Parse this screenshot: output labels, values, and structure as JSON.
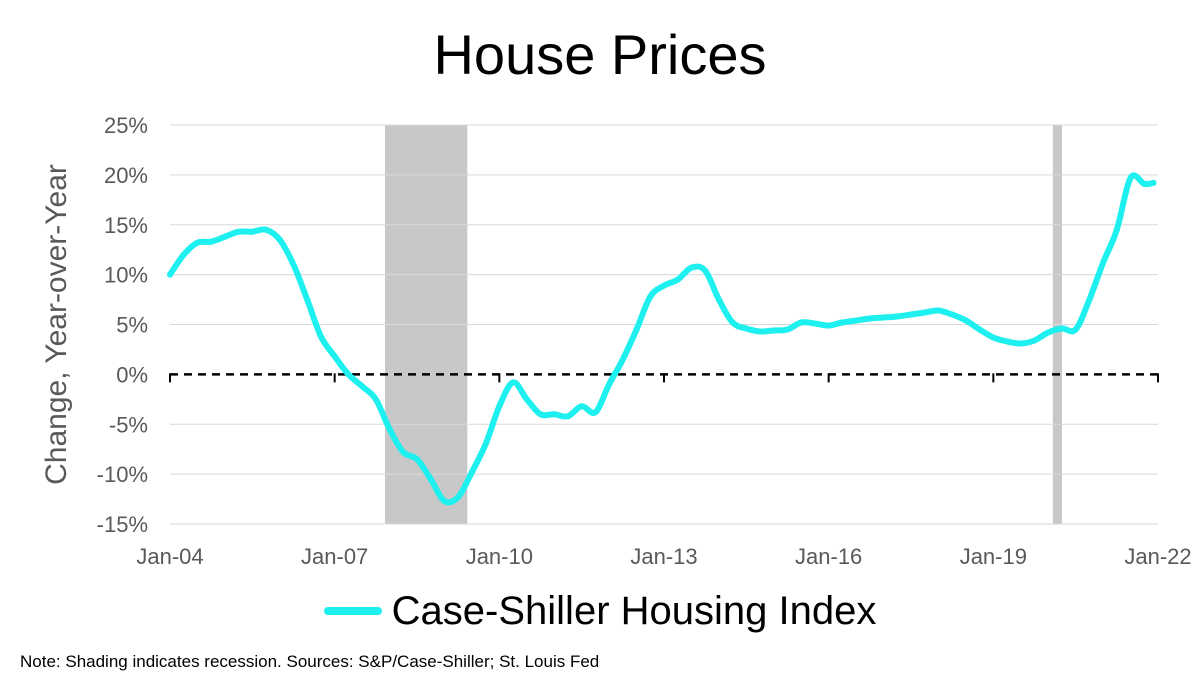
{
  "title": "House Prices",
  "note": "Note: Shading indicates recession. Sources: S&P/Case-Shiller; St. Louis Fed",
  "colors": {
    "series": "#1ef0f0",
    "recession": "#c8c8c8",
    "grid": "#d9d9d9",
    "zero_line": "#000000",
    "text": "#595959"
  },
  "chart_data": {
    "type": "line",
    "ylabel": "Change, Year-over-Year",
    "ylim": [
      -15,
      25
    ],
    "yticks": [
      -15,
      -10,
      -5,
      0,
      5,
      10,
      15,
      20,
      25
    ],
    "ytick_labels": [
      "-15%",
      "-10%",
      "-5%",
      "0%",
      "5%",
      "10%",
      "15%",
      "20%",
      "25%"
    ],
    "xlim": [
      "2004-01",
      "2022-01"
    ],
    "xticks": [
      "2004-01",
      "2007-01",
      "2010-01",
      "2013-01",
      "2016-01",
      "2019-01",
      "2022-01"
    ],
    "xtick_labels": [
      "Jan-04",
      "Jan-07",
      "Jan-10",
      "Jan-13",
      "Jan-16",
      "Jan-19",
      "Jan-22"
    ],
    "zero_line": {
      "y": 0,
      "style": "dashed"
    },
    "grid": true,
    "legend_position": "bottom",
    "recessions": [
      {
        "start": "2007-12",
        "end": "2009-06"
      },
      {
        "start": "2020-02",
        "end": "2020-04"
      }
    ],
    "series": [
      {
        "name": "Case-Shiller Housing Index",
        "x": [
          "2004-01",
          "2004-04",
          "2004-07",
          "2004-10",
          "2005-01",
          "2005-04",
          "2005-07",
          "2005-10",
          "2006-01",
          "2006-04",
          "2006-07",
          "2006-10",
          "2007-01",
          "2007-04",
          "2007-07",
          "2007-10",
          "2008-01",
          "2008-04",
          "2008-07",
          "2008-10",
          "2009-01",
          "2009-04",
          "2009-07",
          "2009-10",
          "2010-01",
          "2010-04",
          "2010-07",
          "2010-10",
          "2011-01",
          "2011-04",
          "2011-07",
          "2011-10",
          "2012-01",
          "2012-04",
          "2012-07",
          "2012-10",
          "2013-01",
          "2013-04",
          "2013-07",
          "2013-10",
          "2014-01",
          "2014-04",
          "2014-07",
          "2014-10",
          "2015-01",
          "2015-04",
          "2015-07",
          "2015-10",
          "2016-01",
          "2016-04",
          "2016-07",
          "2016-10",
          "2017-01",
          "2017-04",
          "2017-07",
          "2017-10",
          "2018-01",
          "2018-04",
          "2018-07",
          "2018-10",
          "2019-01",
          "2019-04",
          "2019-07",
          "2019-10",
          "2020-01",
          "2020-04",
          "2020-07",
          "2020-10",
          "2021-01",
          "2021-04",
          "2021-07",
          "2021-10",
          "2021-12"
        ],
        "values": [
          10.0,
          12.0,
          13.2,
          13.3,
          13.8,
          14.3,
          14.3,
          14.5,
          13.5,
          11.0,
          7.5,
          3.8,
          1.8,
          0.0,
          -1.2,
          -2.5,
          -5.5,
          -7.8,
          -8.5,
          -10.5,
          -12.7,
          -12.3,
          -9.8,
          -7.0,
          -3.2,
          -0.8,
          -2.5,
          -4.0,
          -4.0,
          -4.2,
          -3.2,
          -3.8,
          -1.0,
          1.5,
          4.5,
          7.8,
          8.9,
          9.5,
          10.7,
          10.4,
          7.5,
          5.2,
          4.6,
          4.3,
          4.4,
          4.5,
          5.2,
          5.1,
          4.9,
          5.2,
          5.4,
          5.6,
          5.7,
          5.8,
          6.0,
          6.2,
          6.4,
          6.0,
          5.4,
          4.5,
          3.7,
          3.3,
          3.1,
          3.4,
          4.2,
          4.6,
          4.5,
          7.5,
          11.2,
          14.5,
          19.7,
          19.1,
          19.2
        ]
      }
    ]
  }
}
